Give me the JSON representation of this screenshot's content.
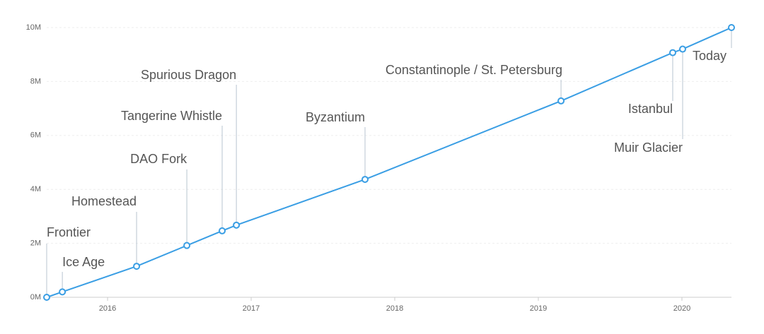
{
  "chart_data": {
    "type": "line",
    "x": [
      2015.576,
      2015.685,
      2016.202,
      2016.552,
      2016.798,
      2016.897,
      2017.793,
      2019.158,
      2019.936,
      2020.005,
      2020.345
    ],
    "series": [
      {
        "color": "#3a9ee4",
        "values": [
          0,
          200000,
          1150000,
          1920000,
          2463000,
          2675000,
          4370000,
          7280000,
          9069000,
          9200000,
          10000000
        ],
        "labels": [
          "Frontier",
          "Ice Age",
          "Homestead",
          "DAO Fork",
          "Tangerine Whistle",
          "Spurious Dragon",
          "Byzantium",
          "Constantinople / St. Petersburg",
          "Istanbul",
          "Muir Glacier",
          "Today"
        ]
      }
    ],
    "xlim": [
      2015.576,
      2020.345
    ],
    "xticks": [
      2016,
      2017,
      2018,
      2019,
      2020
    ],
    "ylim": [
      0,
      10000000
    ],
    "yticks": [
      {
        "value": 0,
        "label": "0M"
      },
      {
        "value": 2000000,
        "label": "2M"
      },
      {
        "value": 4000000,
        "label": "4M"
      },
      {
        "value": 6000000,
        "label": "6M"
      },
      {
        "value": 8000000,
        "label": "8M"
      },
      {
        "value": 10000000,
        "label": "10M"
      }
    ],
    "grid": true
  }
}
